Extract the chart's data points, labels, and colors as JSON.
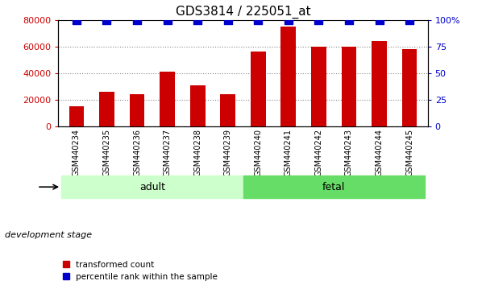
{
  "title": "GDS3814 / 225051_at",
  "categories": [
    "GSM440234",
    "GSM440235",
    "GSM440236",
    "GSM440237",
    "GSM440238",
    "GSM440239",
    "GSM440240",
    "GSM440241",
    "GSM440242",
    "GSM440243",
    "GSM440244",
    "GSM440245"
  ],
  "transformed_count": [
    15000,
    26000,
    24000,
    41000,
    31000,
    24000,
    56000,
    75000,
    60000,
    60000,
    64000,
    58000
  ],
  "percentile_rank": [
    100,
    100,
    100,
    100,
    100,
    100,
    100,
    100,
    100,
    100,
    100,
    100
  ],
  "bar_color": "#cc0000",
  "dot_color": "#0000cc",
  "left_ylim": [
    0,
    80000
  ],
  "right_ylim": [
    0,
    100
  ],
  "left_yticks": [
    0,
    20000,
    40000,
    60000,
    80000
  ],
  "right_yticks": [
    0,
    25,
    50,
    75,
    100
  ],
  "left_ytick_labels": [
    "0",
    "20000",
    "40000",
    "60000",
    "80000"
  ],
  "right_ytick_labels": [
    "0",
    "25",
    "50",
    "75",
    "100%"
  ],
  "adult_label": "adult",
  "fetal_label": "fetal",
  "adult_color": "#ccffcc",
  "fetal_color": "#66dd66",
  "group_label_text": "development stage",
  "legend_transformed": "transformed count",
  "legend_percentile": "percentile rank within the sample",
  "tick_area_color": "#cccccc",
  "title_fontsize": 11,
  "bar_width": 0.5,
  "dot_size": 50,
  "dot_marker": "s",
  "n_adult": 6,
  "n_fetal": 6
}
